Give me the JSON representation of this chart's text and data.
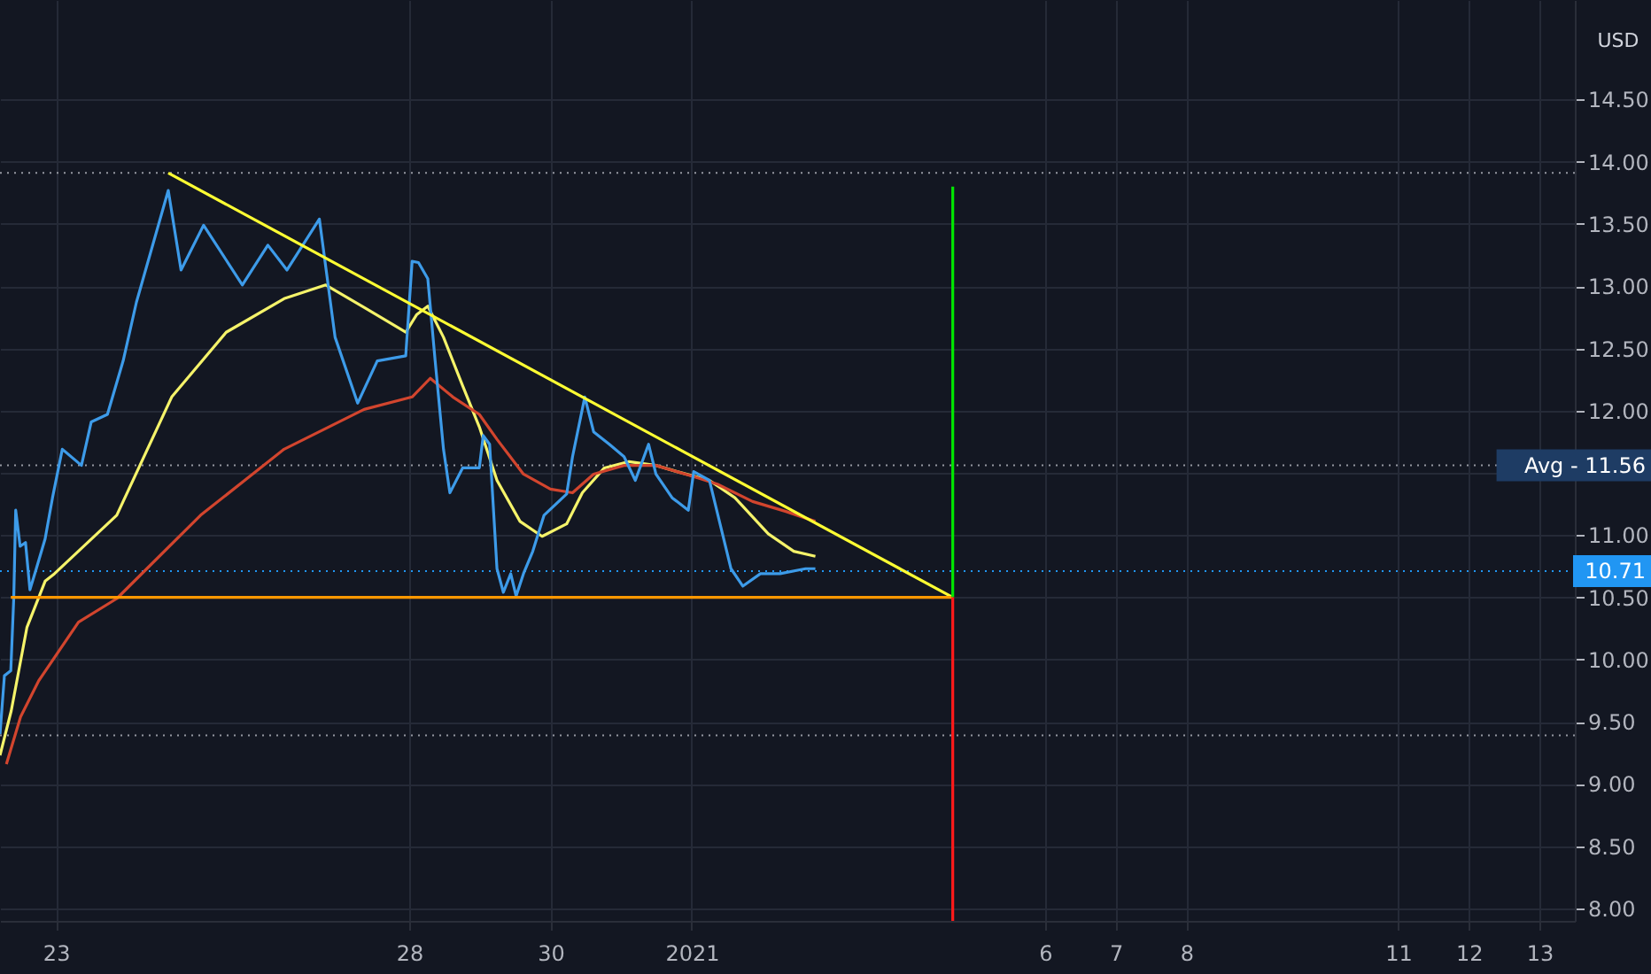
{
  "chart_data": {
    "type": "line",
    "ylabel": "USD",
    "xlim": [
      "2020-12-22T05:00",
      "2021-01-13T12:00"
    ],
    "ylim": [
      7.9,
      15.3
    ],
    "xticks": [
      {
        "value": "2020-12-23",
        "label": "23"
      },
      {
        "value": "2020-12-28",
        "label": "28"
      },
      {
        "value": "2020-12-30",
        "label": "30"
      },
      {
        "value": "2021-01-01",
        "label": "2021"
      },
      {
        "value": "2021-01-06",
        "label": "6"
      },
      {
        "value": "2021-01-07",
        "label": "7"
      },
      {
        "value": "2021-01-08",
        "label": "8"
      },
      {
        "value": "2021-01-11",
        "label": "11"
      },
      {
        "value": "2021-01-12",
        "label": "12"
      },
      {
        "value": "2021-01-13",
        "label": "13"
      }
    ],
    "yticks": [
      {
        "value": 8,
        "label": "8.00"
      },
      {
        "value": 8.5,
        "label": "8.50"
      },
      {
        "value": 9,
        "label": "9.00"
      },
      {
        "value": 9.5,
        "label": "9.50"
      },
      {
        "value": 10,
        "label": "10.00"
      },
      {
        "value": 10.5,
        "label": "10.50"
      },
      {
        "value": 11,
        "label": "11.00"
      },
      {
        "value": 11.5,
        "label": null
      },
      {
        "value": 12,
        "label": "12.00"
      },
      {
        "value": 12.5,
        "label": "12.50"
      },
      {
        "value": 13,
        "label": "13.00"
      },
      {
        "value": 13.5,
        "label": "13.50"
      },
      {
        "value": 14,
        "label": "14.00"
      },
      {
        "value": 14.5,
        "label": "14.50"
      }
    ],
    "grid": true,
    "series": [
      {
        "color": "#f5f36a",
        "x": [
          "2020-12-22T05:00",
          "2020-12-22T08:50",
          "2020-12-22T14:10",
          "2020-12-22T20:20",
          "2020-12-22T23:30",
          "2020-12-23T20:40",
          "2020-12-24T15:20",
          "2020-12-25T09:50",
          "2020-12-26T05:30",
          "2020-12-26T19:40",
          "2020-12-27T08:40",
          "2020-12-27T22:50",
          "2020-12-28T02:30",
          "2020-12-28T06:20",
          "2020-12-28T11:40",
          "2020-12-28T18:10",
          "2020-12-28T23:50",
          "2020-12-29T05:50",
          "2020-12-29T13:40",
          "2020-12-29T21:10",
          "2020-12-30T05:30",
          "2020-12-30T10:50",
          "2020-12-30T18:20",
          "2020-12-31T02:40",
          "2020-12-31T11:50",
          "2020-12-31T19:00",
          "2021-01-01T06:00",
          "2021-01-01T14:40",
          "2021-01-02T02:00",
          "2021-01-02T10:40",
          "2021-01-02T18:00"
        ],
        "values": [
          9.23,
          9.59,
          10.26,
          10.63,
          10.69,
          11.16,
          12.11,
          12.63,
          12.9,
          13.01,
          12.83,
          12.63,
          12.77,
          12.84,
          12.59,
          12.2,
          11.87,
          11.44,
          11.11,
          10.99,
          11.09,
          11.34,
          11.54,
          11.59,
          11.56,
          11.51,
          11.44,
          11.3,
          11.01,
          10.87,
          10.83
        ]
      },
      {
        "color": "#d2452e",
        "x": [
          "2020-12-22T07:10",
          "2020-12-22T12:00",
          "2020-12-22T18:10",
          "2020-12-23T07:40",
          "2020-12-23T20:40",
          "2020-12-25T01:10",
          "2020-12-26T05:30",
          "2020-12-27T08:40",
          "2020-12-28T01:00",
          "2020-12-28T07:10",
          "2020-12-28T14:50",
          "2020-12-28T23:50",
          "2020-12-29T05:50",
          "2020-12-29T14:50",
          "2020-12-30T00:00",
          "2020-12-30T07:30",
          "2020-12-30T14:40",
          "2020-12-31T01:00",
          "2020-12-31T11:50",
          "2021-01-01T00:40",
          "2021-01-01T08:40",
          "2021-01-01T20:40",
          "2021-01-02T08:00",
          "2021-01-02T18:00"
        ],
        "values": [
          9.16,
          9.54,
          9.83,
          10.3,
          10.49,
          11.16,
          11.69,
          12.01,
          12.11,
          12.26,
          12.11,
          11.97,
          11.77,
          11.49,
          11.37,
          11.34,
          11.49,
          11.56,
          11.56,
          11.47,
          11.41,
          11.27,
          11.19,
          11.11
        ]
      },
      {
        "color": "#3d9be9",
        "x": [
          "2020-12-22T05:00",
          "2020-12-22T06:30",
          "2020-12-22T08:40",
          "2020-12-22T09:40",
          "2020-12-22T10:20",
          "2020-12-22T11:50",
          "2020-12-22T13:40",
          "2020-12-22T15:10",
          "2020-12-22T17:20",
          "2020-12-22T20:20",
          "2020-12-22T22:50",
          "2020-12-23T02:10",
          "2020-12-23T08:40",
          "2020-12-23T12:00",
          "2020-12-23T17:30",
          "2020-12-23T22:50",
          "2020-12-24T03:20",
          "2020-12-24T14:10",
          "2020-12-24T18:30",
          "2020-12-25T02:10",
          "2020-12-25T15:20",
          "2020-12-26T00:00",
          "2020-12-26T06:30",
          "2020-12-26T17:30",
          "2020-12-26T22:50",
          "2020-12-27T06:30",
          "2020-12-27T13:10",
          "2020-12-27T22:50",
          "2020-12-28T01:00",
          "2020-12-28T03:10",
          "2020-12-28T06:20",
          "2020-12-28T08:50",
          "2020-12-28T11:40",
          "2020-12-28T13:50",
          "2020-12-28T18:10",
          "2020-12-28T23:50",
          "2020-12-29T01:10",
          "2020-12-29T03:20",
          "2020-12-29T05:50",
          "2020-12-29T08:00",
          "2020-12-29T10:30",
          "2020-12-29T12:20",
          "2020-12-29T14:50",
          "2020-12-29T18:00",
          "2020-12-29T21:50",
          "2020-12-30T05:30",
          "2020-12-30T07:30",
          "2020-12-30T11:40",
          "2020-12-30T14:40",
          "2020-12-30T20:00",
          "2020-12-31T01:00",
          "2020-12-31T04:50",
          "2020-12-31T09:20",
          "2020-12-31T11:50",
          "2020-12-31T17:20",
          "2020-12-31T22:50",
          "2021-01-01T00:40",
          "2021-01-01T06:00",
          "2021-01-01T13:20",
          "2021-01-01T17:20",
          "2021-01-01T23:20",
          "2021-01-02T06:00",
          "2021-01-02T14:40",
          "2021-01-02T18:00"
        ],
        "values": [
          9.4,
          9.87,
          9.91,
          10.49,
          11.2,
          10.91,
          10.94,
          10.56,
          10.73,
          10.97,
          11.3,
          11.69,
          11.56,
          11.91,
          11.97,
          12.4,
          12.87,
          13.77,
          13.13,
          13.49,
          13.01,
          13.33,
          13.13,
          13.54,
          12.59,
          12.06,
          12.4,
          12.44,
          13.2,
          13.19,
          13.06,
          12.4,
          11.69,
          11.34,
          11.54,
          11.54,
          11.8,
          11.73,
          10.73,
          10.54,
          10.69,
          10.51,
          10.69,
          10.87,
          11.16,
          11.33,
          11.63,
          12.11,
          11.83,
          11.73,
          11.63,
          11.44,
          11.73,
          11.49,
          11.3,
          11.2,
          11.51,
          11.44,
          10.73,
          10.59,
          10.69,
          10.69,
          10.73,
          10.73
        ]
      },
      {
        "color": "#ffff33",
        "x": [
          "2020-12-24T14:10",
          "2021-01-04T16:40"
        ],
        "values": [
          13.91,
          10.5
        ]
      },
      {
        "color": "#ff9800",
        "x": [
          "2020-12-22T08:40",
          "2021-01-04T16:40"
        ],
        "values": [
          10.5,
          10.5
        ]
      },
      {
        "color": "#00e600",
        "x": [
          "2021-01-04T16:40",
          "2021-01-04T16:40"
        ],
        "values": [
          10.5,
          13.8
        ]
      },
      {
        "color": "#ff1a1a",
        "x": [
          "2021-01-04T16:40",
          "2021-01-04T16:40"
        ],
        "values": [
          10.5,
          7.9
        ]
      }
    ],
    "ref_lines": [
      {
        "axis": "y",
        "value": 13.91,
        "label": null,
        "color": "#9598a1",
        "line_style": "dotted"
      },
      {
        "axis": "y",
        "value": 11.56,
        "label": "Avg - 11.56",
        "color": "#9598a1",
        "line_style": "dotted"
      },
      {
        "axis": "y",
        "value": 10.71,
        "label": "10.71",
        "color": "#2196f3",
        "line_style": "dotted"
      },
      {
        "axis": "y",
        "value": 9.39,
        "label": null,
        "color": "#9598a1",
        "line_style": "dotted"
      }
    ]
  }
}
